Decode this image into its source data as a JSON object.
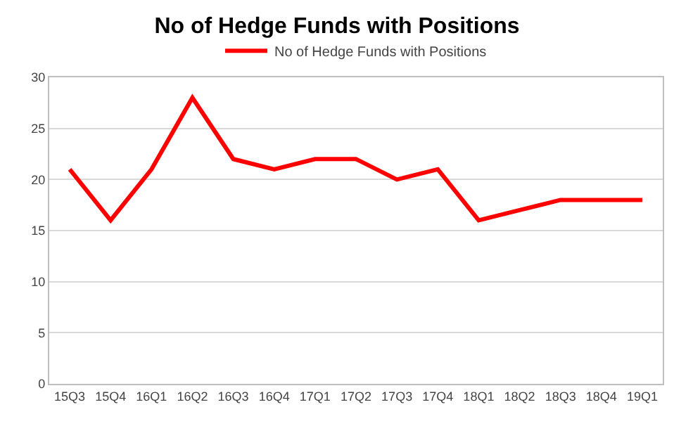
{
  "chart_data": {
    "type": "line",
    "title": "No of Hedge Funds with Positions",
    "categories": [
      "15Q3",
      "15Q4",
      "16Q1",
      "16Q2",
      "16Q3",
      "16Q4",
      "17Q1",
      "17Q2",
      "17Q3",
      "17Q4",
      "18Q1",
      "18Q2",
      "18Q3",
      "18Q4",
      "19Q1"
    ],
    "series": [
      {
        "name": "No of Hedge Funds with Positions",
        "color": "#ff0000",
        "values": [
          21,
          16,
          21,
          28,
          22,
          21,
          22,
          22,
          20,
          21,
          16,
          17,
          18,
          18,
          18
        ]
      }
    ],
    "ylim": [
      0,
      30
    ],
    "yticks": [
      0,
      5,
      10,
      15,
      20,
      25,
      30
    ],
    "grid": "y",
    "legend": "top",
    "marker": "none",
    "line_style": "solid"
  }
}
